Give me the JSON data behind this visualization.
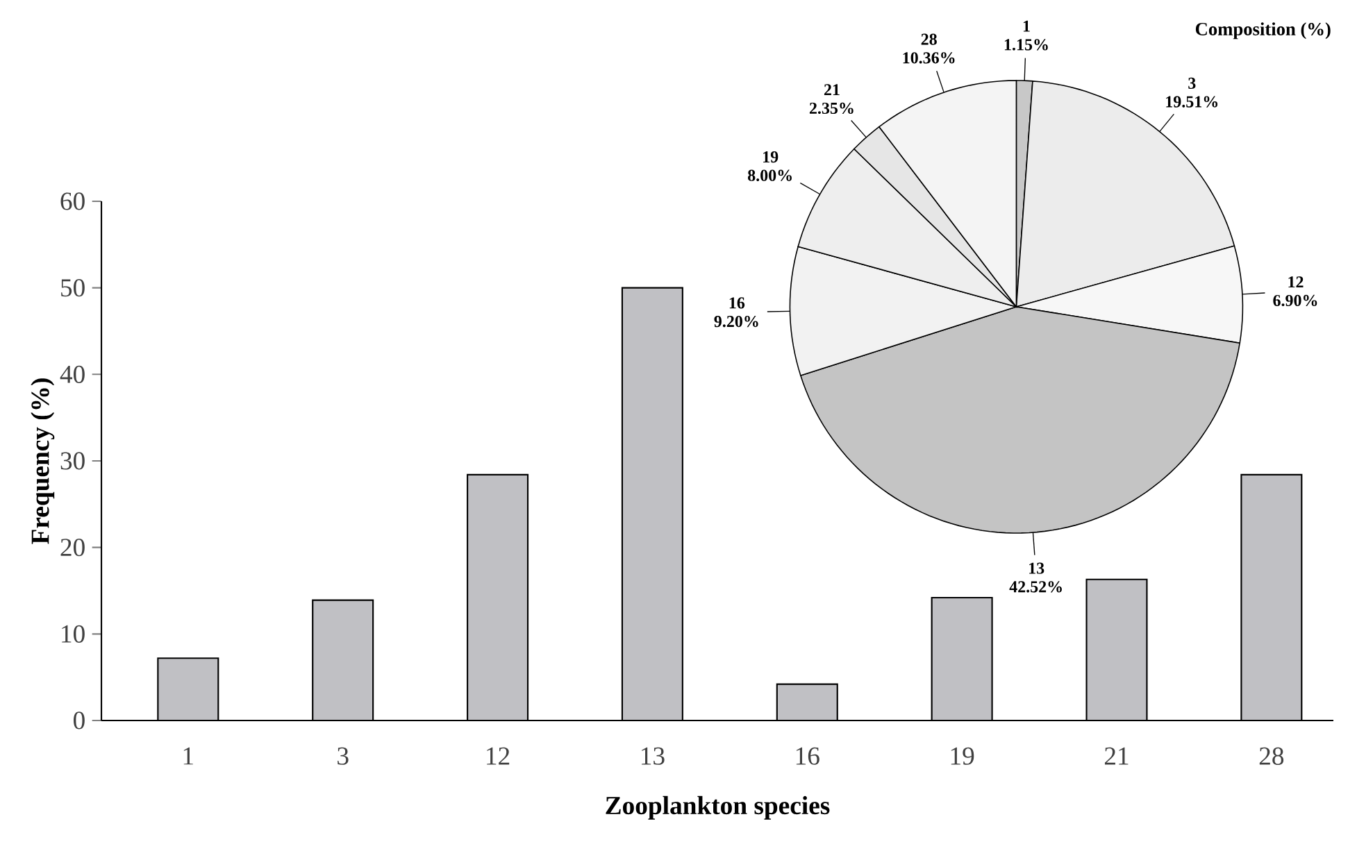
{
  "chart_data": [
    {
      "type": "bar",
      "categories": [
        "1",
        "3",
        "12",
        "13",
        "16",
        "19",
        "21",
        "28"
      ],
      "values": [
        7.2,
        13.9,
        28.4,
        50,
        4.2,
        14.2,
        16.3,
        28.4
      ],
      "color": "#c0c0c4",
      "xlabel": "Zooplankton species",
      "ylabel": "Frequency (%)",
      "ylim": [
        0,
        60
      ],
      "yticks": [
        0,
        10,
        20,
        30,
        40,
        50,
        60
      ]
    },
    {
      "type": "pie",
      "title": "Composition (%)",
      "categories": [
        "1",
        "3",
        "12",
        "13",
        "16",
        "19",
        "21",
        "28"
      ],
      "values": [
        1.15,
        19.51,
        6.9,
        42.52,
        9.2,
        8.0,
        2.35,
        10.36
      ],
      "value_labels": [
        "1.15%",
        "19.51%",
        "6.90%",
        "42.52%",
        "9.20%",
        "8.00%",
        "2.35%",
        "10.36%"
      ],
      "colors": [
        "#c8c8c8",
        "#ececec",
        "#f7f7f7",
        "#c4c4c4",
        "#f2f2f2",
        "#eeeeee",
        "#e6e6e6",
        "#f4f4f4"
      ]
    }
  ]
}
